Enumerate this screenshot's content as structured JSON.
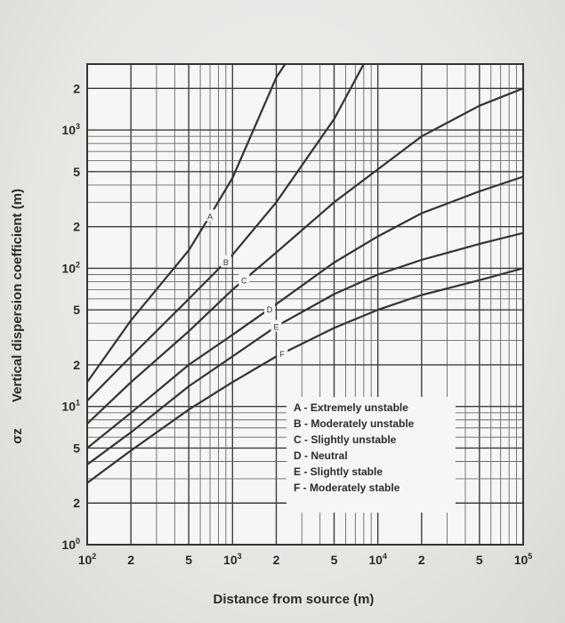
{
  "chart_data": {
    "type": "line",
    "title": "",
    "xlabel": "Distance from source (m)",
    "ylabel_symbol": "σz",
    "ylabel": "Vertical dispersion coefficient (m)",
    "xscale": "log",
    "yscale": "log",
    "xlim": [
      100,
      100000
    ],
    "ylim": [
      1,
      3000
    ],
    "grid": true,
    "x_ticks": [
      {
        "value": 100,
        "base": "10",
        "exp": "2"
      },
      {
        "value": 200,
        "base": "2",
        "exp": ""
      },
      {
        "value": 500,
        "base": "5",
        "exp": ""
      },
      {
        "value": 1000,
        "base": "10",
        "exp": "3"
      },
      {
        "value": 2000,
        "base": "2",
        "exp": ""
      },
      {
        "value": 5000,
        "base": "5",
        "exp": ""
      },
      {
        "value": 10000,
        "base": "10",
        "exp": "4"
      },
      {
        "value": 20000,
        "base": "2",
        "exp": ""
      },
      {
        "value": 50000,
        "base": "5",
        "exp": ""
      },
      {
        "value": 100000,
        "base": "10",
        "exp": "5"
      }
    ],
    "y_ticks": [
      {
        "value": 1,
        "base": "10",
        "exp": "0"
      },
      {
        "value": 2,
        "base": "2",
        "exp": ""
      },
      {
        "value": 5,
        "base": "5",
        "exp": ""
      },
      {
        "value": 10,
        "base": "10",
        "exp": "1"
      },
      {
        "value": 20,
        "base": "2",
        "exp": ""
      },
      {
        "value": 50,
        "base": "5",
        "exp": ""
      },
      {
        "value": 100,
        "base": "10",
        "exp": "2"
      },
      {
        "value": 200,
        "base": "2",
        "exp": ""
      },
      {
        "value": 500,
        "base": "5",
        "exp": ""
      },
      {
        "value": 1000,
        "base": "10",
        "exp": "3"
      },
      {
        "value": 2000,
        "base": "2",
        "exp": ""
      }
    ],
    "series": [
      {
        "name": "A",
        "label_at": 700,
        "points": [
          [
            100,
            15
          ],
          [
            200,
            42
          ],
          [
            500,
            135
          ],
          [
            700,
            240
          ],
          [
            1000,
            450
          ],
          [
            2000,
            2400
          ],
          [
            2300,
            3000
          ]
        ]
      },
      {
        "name": "B",
        "label_at": 900,
        "points": [
          [
            100,
            11
          ],
          [
            200,
            23
          ],
          [
            500,
            60
          ],
          [
            1000,
            125
          ],
          [
            2000,
            300
          ],
          [
            5000,
            1200
          ],
          [
            8000,
            3000
          ]
        ]
      },
      {
        "name": "C",
        "label_at": 1200,
        "points": [
          [
            100,
            7.5
          ],
          [
            200,
            15
          ],
          [
            500,
            35
          ],
          [
            1000,
            70
          ],
          [
            2000,
            130
          ],
          [
            5000,
            300
          ],
          [
            10000,
            520
          ],
          [
            20000,
            900
          ],
          [
            50000,
            1500
          ],
          [
            100000,
            2000
          ]
        ]
      },
      {
        "name": "D",
        "label_at": 1800,
        "points": [
          [
            100,
            5
          ],
          [
            200,
            9
          ],
          [
            500,
            20
          ],
          [
            1000,
            33
          ],
          [
            2000,
            55
          ],
          [
            5000,
            110
          ],
          [
            10000,
            170
          ],
          [
            20000,
            250
          ],
          [
            50000,
            360
          ],
          [
            100000,
            460
          ]
        ]
      },
      {
        "name": "E",
        "label_at": 2000,
        "points": [
          [
            100,
            3.8
          ],
          [
            200,
            6.5
          ],
          [
            500,
            14
          ],
          [
            1000,
            23
          ],
          [
            2000,
            38
          ],
          [
            5000,
            65
          ],
          [
            10000,
            90
          ],
          [
            20000,
            115
          ],
          [
            50000,
            150
          ],
          [
            100000,
            180
          ]
        ]
      },
      {
        "name": "F",
        "label_at": 2200,
        "points": [
          [
            100,
            2.8
          ],
          [
            200,
            4.8
          ],
          [
            500,
            9.5
          ],
          [
            1000,
            15
          ],
          [
            2000,
            23
          ],
          [
            5000,
            37
          ],
          [
            10000,
            50
          ],
          [
            20000,
            64
          ],
          [
            50000,
            82
          ],
          [
            100000,
            100
          ]
        ]
      }
    ],
    "legend": [
      "A - Extremely  unstable",
      "B - Moderately unstable",
      "C - Slightly unstable",
      "D - Neutral",
      "E - Slightly stable",
      "F - Moderately stable"
    ],
    "legend_position": "bottom-right"
  }
}
